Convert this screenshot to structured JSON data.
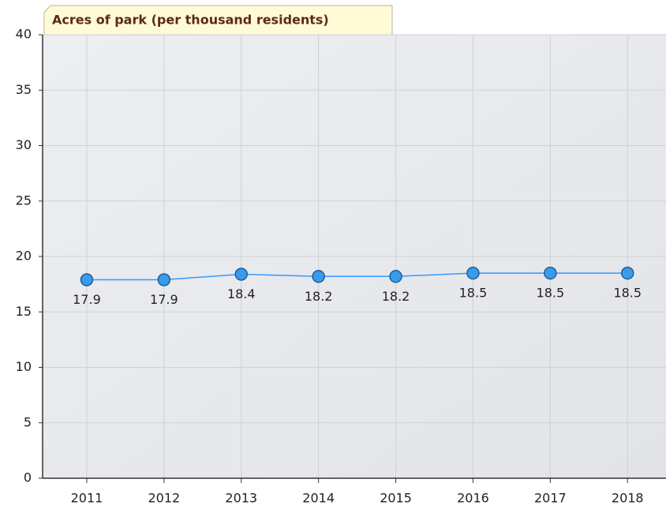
{
  "chart_data": {
    "type": "line",
    "title": "Acres of park (per thousand residents)",
    "categories": [
      "2011",
      "2012",
      "2013",
      "2014",
      "2015",
      "2016",
      "2017",
      "2018"
    ],
    "values": [
      17.9,
      17.9,
      18.4,
      18.2,
      18.2,
      18.5,
      18.5,
      18.5
    ],
    "color": "#3399ff",
    "ylim": [
      0,
      40
    ],
    "yticks": [
      0,
      5,
      10,
      15,
      20,
      25,
      30,
      35,
      40
    ],
    "grid": true
  }
}
